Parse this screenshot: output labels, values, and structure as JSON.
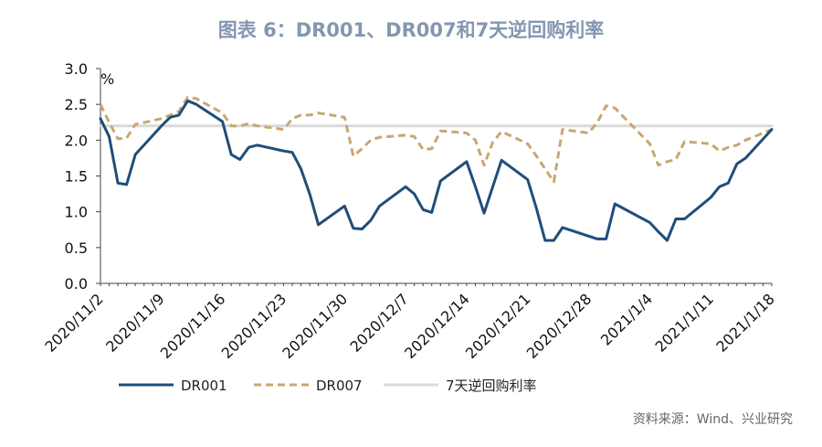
{
  "chart_data": {
    "type": "line",
    "title": "图表 6：DR001、DR007和7天逆回购利率",
    "ylabel": "%",
    "ylim": [
      0,
      3
    ],
    "yticks": [
      "3.0",
      "2.5",
      "2.0",
      "1.5",
      "1.0",
      "0.5",
      "0.0"
    ],
    "x_ticks": [
      "2020/11/2",
      "2020/11/9",
      "2020/11/16",
      "2020/11/23",
      "2020/11/30",
      "2020/12/7",
      "2020/12/14",
      "2020/12/21",
      "2020/12/28",
      "2021/1/4",
      "2021/1/11",
      "2021/1/18"
    ],
    "x_start": "2020/11/2",
    "x_end": "2021/1/19",
    "series": [
      {
        "name": "DR001",
        "color": "#1f4e79",
        "style": "solid",
        "points": [
          [
            0,
            2.3
          ],
          [
            1,
            2.05
          ],
          [
            2,
            1.4
          ],
          [
            3,
            1.38
          ],
          [
            4,
            1.8
          ],
          [
            7,
            2.2
          ],
          [
            8,
            2.32
          ],
          [
            9,
            2.35
          ],
          [
            10,
            2.55
          ],
          [
            11,
            2.5
          ],
          [
            14,
            2.26
          ],
          [
            15,
            1.8
          ],
          [
            16,
            1.73
          ],
          [
            17,
            1.9
          ],
          [
            18,
            1.93
          ],
          [
            21,
            1.85
          ],
          [
            22,
            1.83
          ],
          [
            23,
            1.6
          ],
          [
            24,
            1.25
          ],
          [
            25,
            0.82
          ],
          [
            28,
            1.08
          ],
          [
            29,
            0.77
          ],
          [
            30,
            0.76
          ],
          [
            31,
            0.88
          ],
          [
            32,
            1.08
          ],
          [
            35,
            1.35
          ],
          [
            36,
            1.25
          ],
          [
            37,
            1.03
          ],
          [
            38,
            0.99
          ],
          [
            39,
            1.43
          ],
          [
            42,
            1.7
          ],
          [
            43,
            1.35
          ],
          [
            44,
            0.98
          ],
          [
            45,
            1.35
          ],
          [
            46,
            1.72
          ],
          [
            49,
            1.45
          ],
          [
            50,
            1.05
          ],
          [
            51,
            0.6
          ],
          [
            52,
            0.6
          ],
          [
            53,
            0.78
          ],
          [
            56,
            0.66
          ],
          [
            57,
            0.62
          ],
          [
            58,
            0.62
          ],
          [
            59,
            1.11
          ],
          [
            63,
            0.85
          ],
          [
            64,
            0.72
          ],
          [
            65,
            0.6
          ],
          [
            66,
            0.9
          ],
          [
            67,
            0.9
          ],
          [
            70,
            1.2
          ],
          [
            71,
            1.35
          ],
          [
            72,
            1.4
          ],
          [
            73,
            1.67
          ],
          [
            74,
            1.75
          ],
          [
            77,
            2.15
          ]
        ]
      },
      {
        "name": "DR007",
        "color": "#c9a772",
        "style": "dashed",
        "points": [
          [
            0,
            2.5
          ],
          [
            1,
            2.25
          ],
          [
            2,
            2.02
          ],
          [
            3,
            2.03
          ],
          [
            4,
            2.22
          ],
          [
            7,
            2.3
          ],
          [
            8,
            2.35
          ],
          [
            9,
            2.4
          ],
          [
            10,
            2.6
          ],
          [
            11,
            2.58
          ],
          [
            14,
            2.38
          ],
          [
            15,
            2.2
          ],
          [
            16,
            2.2
          ],
          [
            17,
            2.23
          ],
          [
            18,
            2.2
          ],
          [
            21,
            2.15
          ],
          [
            22,
            2.3
          ],
          [
            23,
            2.35
          ],
          [
            24,
            2.35
          ],
          [
            25,
            2.38
          ],
          [
            28,
            2.32
          ],
          [
            29,
            1.78
          ],
          [
            30,
            1.88
          ],
          [
            31,
            2.0
          ],
          [
            32,
            2.04
          ],
          [
            35,
            2.07
          ],
          [
            36,
            2.05
          ],
          [
            37,
            1.87
          ],
          [
            38,
            1.88
          ],
          [
            39,
            2.13
          ],
          [
            42,
            2.1
          ],
          [
            43,
            2.0
          ],
          [
            44,
            1.65
          ],
          [
            45,
            1.97
          ],
          [
            46,
            2.12
          ],
          [
            49,
            1.95
          ],
          [
            50,
            1.78
          ],
          [
            51,
            1.6
          ],
          [
            52,
            1.42
          ],
          [
            53,
            2.15
          ],
          [
            56,
            2.1
          ],
          [
            57,
            2.25
          ],
          [
            58,
            2.48
          ],
          [
            59,
            2.45
          ],
          [
            63,
            1.95
          ],
          [
            64,
            1.65
          ],
          [
            65,
            1.7
          ],
          [
            66,
            1.73
          ],
          [
            67,
            1.98
          ],
          [
            70,
            1.95
          ],
          [
            71,
            1.85
          ],
          [
            72,
            1.9
          ],
          [
            73,
            1.93
          ],
          [
            74,
            2.0
          ],
          [
            77,
            2.15
          ]
        ]
      },
      {
        "name": "7天逆回购利率",
        "color": "#d9d9d9",
        "style": "solid",
        "points": [
          [
            0,
            2.2
          ],
          [
            77,
            2.2
          ]
        ]
      }
    ],
    "x_unit": "days since 2020/11/2",
    "grid": false,
    "legend_position": "bottom",
    "source": "资料来源：Wind、兴业研究"
  }
}
